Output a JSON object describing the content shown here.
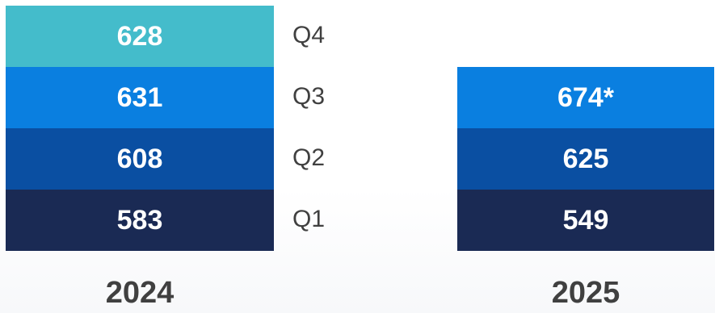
{
  "chart_data": {
    "type": "bar",
    "stacked": true,
    "categories": [
      "2024",
      "2025"
    ],
    "series": [
      {
        "name": "Q1",
        "values": [
          583,
          549
        ],
        "labels": [
          "583",
          "549"
        ],
        "color": "#1a2a54"
      },
      {
        "name": "Q2",
        "values": [
          608,
          625
        ],
        "labels": [
          "608",
          "625"
        ],
        "color": "#0a4fa2"
      },
      {
        "name": "Q3",
        "values": [
          631,
          674
        ],
        "labels": [
          "631",
          "674*"
        ],
        "color": "#0a7fe0"
      },
      {
        "name": "Q4",
        "values": [
          628,
          null
        ],
        "labels": [
          "628",
          ""
        ],
        "color": "#44bccb"
      }
    ],
    "legend": "inline-between-bars",
    "grid": false
  }
}
